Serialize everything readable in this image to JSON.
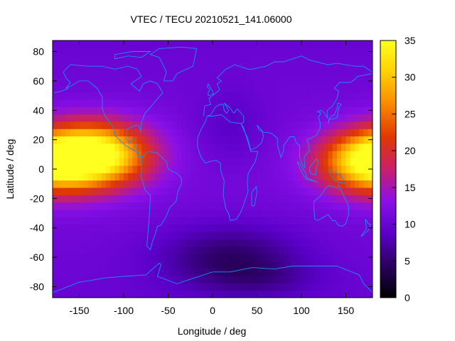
{
  "chart_data": {
    "type": "heatmap",
    "title": "VTEC / TECU 20210521_141.06000",
    "xlabel": "Longitude / deg",
    "ylabel": "Latitude / deg",
    "xlim": [
      -180,
      180
    ],
    "ylim": [
      -87.5,
      87.5
    ],
    "x_ticks": [
      -150,
      -100,
      -50,
      0,
      50,
      100,
      150
    ],
    "y_ticks": [
      -80,
      -60,
      -40,
      -20,
      0,
      20,
      40,
      60,
      80
    ],
    "colorbar": {
      "range": [
        0,
        35
      ],
      "ticks": [
        0,
        5,
        10,
        15,
        20,
        25,
        30,
        35
      ],
      "colormap": [
        "#000000",
        "#2a0060",
        "#5a00c8",
        "#8a10e8",
        "#c8206a",
        "#e03800",
        "#f88800",
        "#ffd000",
        "#ffff20"
      ]
    },
    "coastline_color": "#1e8cf0",
    "field_features": [
      {
        "lon": -130,
        "lat": 10,
        "peak_tecu": 34
      },
      {
        "lon": 175,
        "lat": 5,
        "peak_tecu": 31
      },
      {
        "lon": 20,
        "lat": -60,
        "trough_tecu": 4
      }
    ],
    "background_tecu": 10
  }
}
